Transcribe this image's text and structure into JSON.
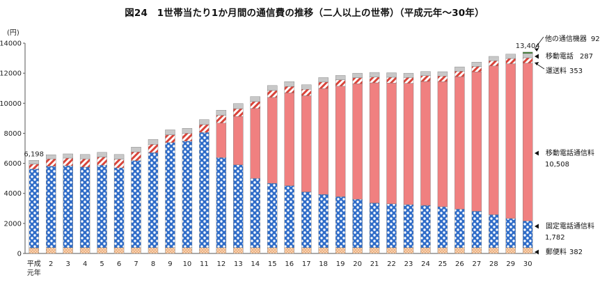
{
  "title": "図24　1世帯当たり1か月間の通信費の推移（二人以上の世帯）（平成元年～30年）",
  "colors": {
    "other_comm": "#3a7d2c",
    "mobile_handset": "#c8c8c8",
    "transport": "#d9443a",
    "mobile_comm": "#f08080",
    "landline": "#2f6cc8",
    "postal": "#f3b98a"
  },
  "chart_data": {
    "type": "bar",
    "stacked": true,
    "yunit": "(円)",
    "ylim": [
      0,
      14000
    ],
    "yticks": [
      0,
      2000,
      4000,
      6000,
      8000,
      10000,
      12000,
      14000
    ],
    "grid": false,
    "categories": [
      "平成元年",
      "2",
      "3",
      "4",
      "5",
      "6",
      "7",
      "8",
      "9",
      "10",
      "11",
      "12",
      "13",
      "14",
      "15",
      "16",
      "17",
      "18",
      "19",
      "20",
      "21",
      "22",
      "23",
      "24",
      "25",
      "26",
      "27",
      "28",
      "29",
      "30"
    ],
    "first_label": [
      "平成",
      "元年"
    ],
    "series": [
      {
        "name": "郵便料",
        "key": "postal",
        "values": [
          370,
          380,
          380,
          380,
          380,
          380,
          380,
          380,
          380,
          380,
          380,
          380,
          380,
          380,
          380,
          380,
          380,
          380,
          380,
          380,
          380,
          380,
          380,
          380,
          380,
          380,
          380,
          380,
          380,
          382
        ]
      },
      {
        "name": "固定電話通信料",
        "key": "landline",
        "values": [
          5250,
          5430,
          5460,
          5370,
          5500,
          5320,
          5800,
          6330,
          7000,
          7100,
          7680,
          6000,
          5520,
          4620,
          4290,
          4130,
          3720,
          3550,
          3400,
          3230,
          2980,
          2920,
          2870,
          2820,
          2730,
          2570,
          2430,
          2200,
          1950,
          1782
        ]
      },
      {
        "name": "移動電話通信料",
        "key": "mobile_comm",
        "values": [
          0,
          0,
          0,
          0,
          0,
          0,
          0,
          0,
          0,
          0,
          0,
          2300,
          3220,
          4650,
          5720,
          6180,
          6400,
          7050,
          7360,
          7690,
          8000,
          8050,
          8080,
          8250,
          8330,
          8820,
          9280,
          9900,
          10300,
          10508
        ]
      },
      {
        "name": "運送料",
        "key": "transport",
        "values": [
          330,
          480,
          510,
          540,
          540,
          580,
          580,
          550,
          520,
          520,
          520,
          520,
          520,
          460,
          460,
          430,
          430,
          430,
          420,
          400,
          380,
          380,
          380,
          380,
          370,
          360,
          360,
          350,
          350,
          353
        ]
      },
      {
        "name": "移動電話",
        "key": "mobile_handset",
        "values": [
          250,
          280,
          280,
          300,
          310,
          310,
          320,
          330,
          330,
          330,
          330,
          340,
          340,
          330,
          330,
          320,
          300,
          300,
          290,
          300,
          310,
          300,
          290,
          280,
          290,
          290,
          290,
          290,
          290,
          287
        ]
      },
      {
        "name": "他の通信機器",
        "key": "other_comm",
        "values": [
          0,
          0,
          0,
          0,
          0,
          0,
          0,
          0,
          0,
          0,
          0,
          0,
          0,
          0,
          0,
          0,
          0,
          0,
          0,
          0,
          0,
          0,
          0,
          0,
          0,
          0,
          0,
          0,
          0,
          92
        ]
      }
    ],
    "data_labels": [
      {
        "category": "平成元年",
        "text": "6,198"
      },
      {
        "category": "30",
        "text": "13,404"
      }
    ],
    "right_labels": [
      {
        "series": "他の通信機器",
        "text": "他の通信機器",
        "value": "92"
      },
      {
        "series": "移動電話",
        "text": "移動電話",
        "value": "287"
      },
      {
        "series": "運送料",
        "text": "運送料",
        "value": "353"
      },
      {
        "series": "移動電話通信料",
        "text": "移動電話通信料",
        "value": "10,508"
      },
      {
        "series": "固定電話通信料",
        "text": "固定電話通信料",
        "value": "1,782"
      },
      {
        "series": "郵便料",
        "text": "郵便料",
        "value": "382"
      }
    ]
  }
}
